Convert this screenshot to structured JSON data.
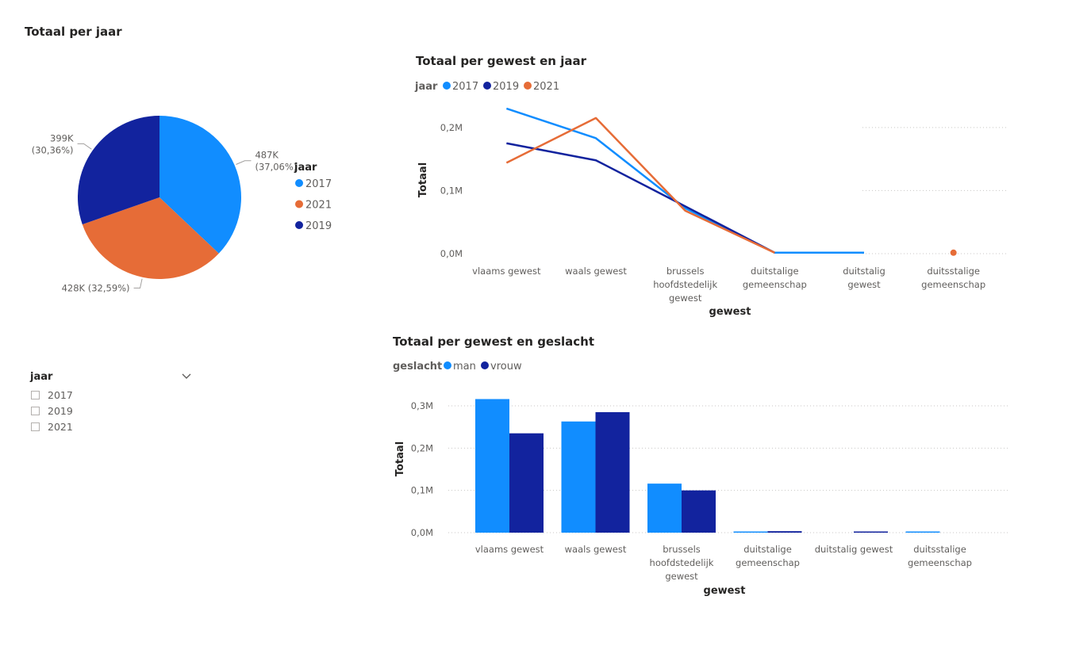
{
  "colors": {
    "c2017": "#118DFF",
    "c2019": "#12239E",
    "c2021": "#E66C37",
    "man": "#118DFF",
    "vrouw": "#12239E",
    "grid": "#c8c6c4",
    "axis_text": "#605e5c"
  },
  "pie": {
    "title": "Totaal per jaar",
    "legend_title": "jaar"
  },
  "line": {
    "title": "Totaal per gewest en jaar",
    "legend_title": "jaar",
    "xlabel": "gewest",
    "ylabel": "Totaal"
  },
  "bar": {
    "title": "Totaal per gewest en geslacht",
    "legend_title": "geslacht",
    "xlabel": "gewest",
    "ylabel": "Totaal"
  },
  "slicer": {
    "title": "jaar",
    "options": [
      "2017",
      "2019",
      "2021"
    ]
  },
  "chart_data": [
    {
      "type": "pie",
      "title": "Totaal per jaar",
      "legend_title": "jaar",
      "slices": [
        {
          "name": "2017",
          "value": 487000,
          "label": "487K",
          "pct": "(37,06%)",
          "color": "#118DFF"
        },
        {
          "name": "2021",
          "value": 428000,
          "label": "428K (32,59%)",
          "pct": "",
          "color": "#E66C37"
        },
        {
          "name": "2019",
          "value": 399000,
          "label": "399K",
          "pct": "(30,36%)",
          "color": "#12239E"
        }
      ]
    },
    {
      "type": "line",
      "title": "Totaal per gewest en jaar",
      "xlabel": "gewest",
      "ylabel": "Totaal",
      "categories": [
        "vlaams gewest",
        "waals gewest",
        "brussels hoofdstedelijk gewest",
        "duitstalige gemeenschap",
        "duitstalig gewest",
        "duitsstalige gemeenschap"
      ],
      "category_lines": [
        [
          "vlaams gewest"
        ],
        [
          "waals gewest"
        ],
        [
          "brussels",
          "hoofdstedelijk",
          "gewest"
        ],
        [
          "duitstalige",
          "gemeenschap"
        ],
        [
          "duitstalig",
          "gewest"
        ],
        [
          "duitsstalige",
          "gemeenschap"
        ]
      ],
      "yticks": [
        0,
        100000,
        200000
      ],
      "ytick_labels": [
        "0,0M",
        "0,1M",
        "0,2M"
      ],
      "ylim": [
        0,
        240000
      ],
      "series": [
        {
          "name": "2017",
          "color": "#118DFF",
          "values": [
            230000,
            183000,
            72000,
            1500,
            1500,
            null
          ]
        },
        {
          "name": "2019",
          "color": "#12239E",
          "values": [
            175000,
            148000,
            75000,
            1500,
            null,
            null
          ]
        },
        {
          "name": "2021",
          "color": "#E66C37",
          "values": [
            144000,
            215000,
            68000,
            1500,
            null,
            1500
          ]
        }
      ]
    },
    {
      "type": "bar",
      "title": "Totaal per gewest en geslacht",
      "xlabel": "gewest",
      "ylabel": "Totaal",
      "categories": [
        "vlaams gewest",
        "waals gewest",
        "brussels hoofdstedelijk gewest",
        "duitstalige gemeenschap",
        "duitstalig gewest",
        "duitsstalige gemeenschap"
      ],
      "category_lines": [
        [
          "vlaams gewest"
        ],
        [
          "waals gewest"
        ],
        [
          "brussels",
          "hoofdstedelijk",
          "gewest"
        ],
        [
          "duitstalige",
          "gemeenschap"
        ],
        [
          "duitstalig gewest"
        ],
        [
          "duitsstalige",
          "gemeenschap"
        ]
      ],
      "yticks": [
        0,
        100000,
        200000,
        300000
      ],
      "ytick_labels": [
        "0,0M",
        "0,1M",
        "0,2M",
        "0,3M"
      ],
      "ylim": [
        0,
        340000
      ],
      "series": [
        {
          "name": "man",
          "color": "#118DFF",
          "values": [
            316000,
            263000,
            116000,
            2500,
            0,
            2500
          ]
        },
        {
          "name": "vrouw",
          "color": "#12239E",
          "values": [
            235000,
            285000,
            100000,
            3500,
            2500,
            0
          ]
        }
      ]
    }
  ]
}
